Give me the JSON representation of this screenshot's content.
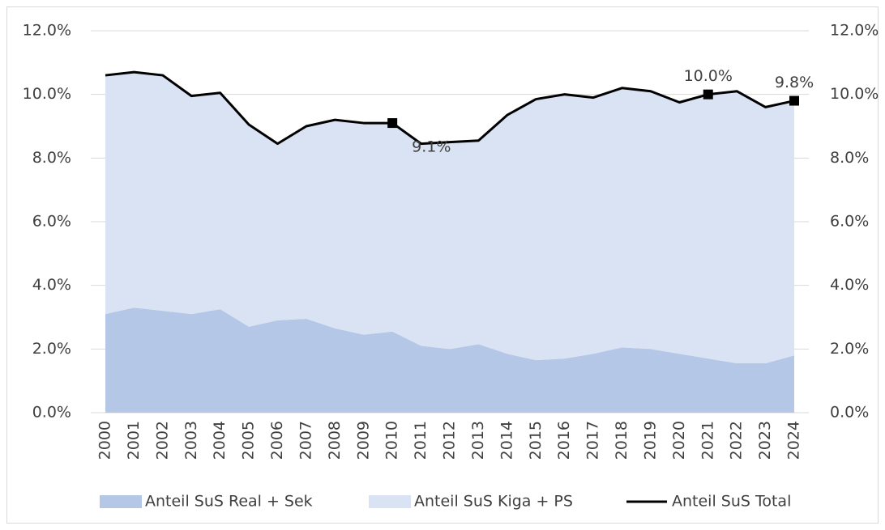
{
  "chart_data": {
    "type": "stacked_area_line",
    "categories": [
      "2000",
      "2001",
      "2002",
      "2003",
      "2004",
      "2005",
      "2006",
      "2007",
      "2008",
      "2009",
      "2010",
      "2011",
      "2012",
      "2013",
      "2014",
      "2015",
      "2016",
      "2017",
      "2018",
      "2019",
      "2020",
      "2021",
      "2022",
      "2023",
      "2024"
    ],
    "series": [
      {
        "name": "Anteil SuS Real + Sek",
        "type": "area",
        "color": "#b4c7e7",
        "values": [
          3.1,
          3.3,
          3.2,
          3.1,
          3.25,
          2.7,
          2.9,
          2.95,
          2.65,
          2.45,
          2.55,
          2.1,
          2.0,
          2.15,
          1.85,
          1.65,
          1.7,
          1.85,
          2.05,
          2.0,
          1.85,
          1.7,
          1.55,
          1.55,
          1.8
        ]
      },
      {
        "name": "Anteil SuS Kiga + PS",
        "type": "area",
        "color": "#dae3f3",
        "values": [
          7.5,
          7.4,
          7.4,
          6.85,
          6.8,
          6.35,
          5.55,
          6.05,
          6.55,
          6.65,
          6.55,
          6.35,
          6.5,
          6.4,
          7.5,
          8.2,
          8.3,
          8.05,
          8.15,
          8.1,
          7.9,
          8.3,
          8.55,
          8.05,
          8.0
        ]
      },
      {
        "name": "Anteil SuS Total",
        "type": "line",
        "color": "#000000",
        "axis": "y2",
        "values": [
          10.6,
          10.7,
          10.6,
          9.95,
          10.05,
          9.05,
          8.45,
          9.0,
          9.2,
          9.1,
          9.1,
          8.45,
          8.5,
          8.55,
          9.35,
          9.85,
          10.0,
          9.9,
          10.2,
          10.1,
          9.75,
          10.0,
          10.1,
          9.6,
          9.8
        ],
        "value_labels": [
          null,
          null,
          null,
          null,
          null,
          null,
          null,
          null,
          null,
          null,
          "9.1%",
          null,
          null,
          null,
          null,
          null,
          null,
          null,
          null,
          null,
          null,
          "10.0%",
          null,
          null,
          "9.8%"
        ]
      }
    ],
    "ylim": [
      0,
      12
    ],
    "yticks": [
      {
        "value": 0,
        "label": "0.0%"
      },
      {
        "value": 2,
        "label": "2.0%"
      },
      {
        "value": 4,
        "label": "4.0%"
      },
      {
        "value": 6,
        "label": "6.0%"
      },
      {
        "value": 8,
        "label": "8.0%"
      },
      {
        "value": 10,
        "label": "10.0%"
      },
      {
        "value": 12,
        "label": "12.0%"
      }
    ],
    "y2lim": [
      0,
      12
    ],
    "y2ticks": [
      {
        "value": 0,
        "label": "0.0%"
      },
      {
        "value": 2,
        "label": "2.0%"
      },
      {
        "value": 4,
        "label": "4.0%"
      },
      {
        "value": 6,
        "label": "6.0%"
      },
      {
        "value": 8,
        "label": "8.0%"
      },
      {
        "value": 10,
        "label": "10.0%"
      },
      {
        "value": 12,
        "label": "12.0%"
      }
    ],
    "grid": true,
    "legend": "bottom"
  }
}
